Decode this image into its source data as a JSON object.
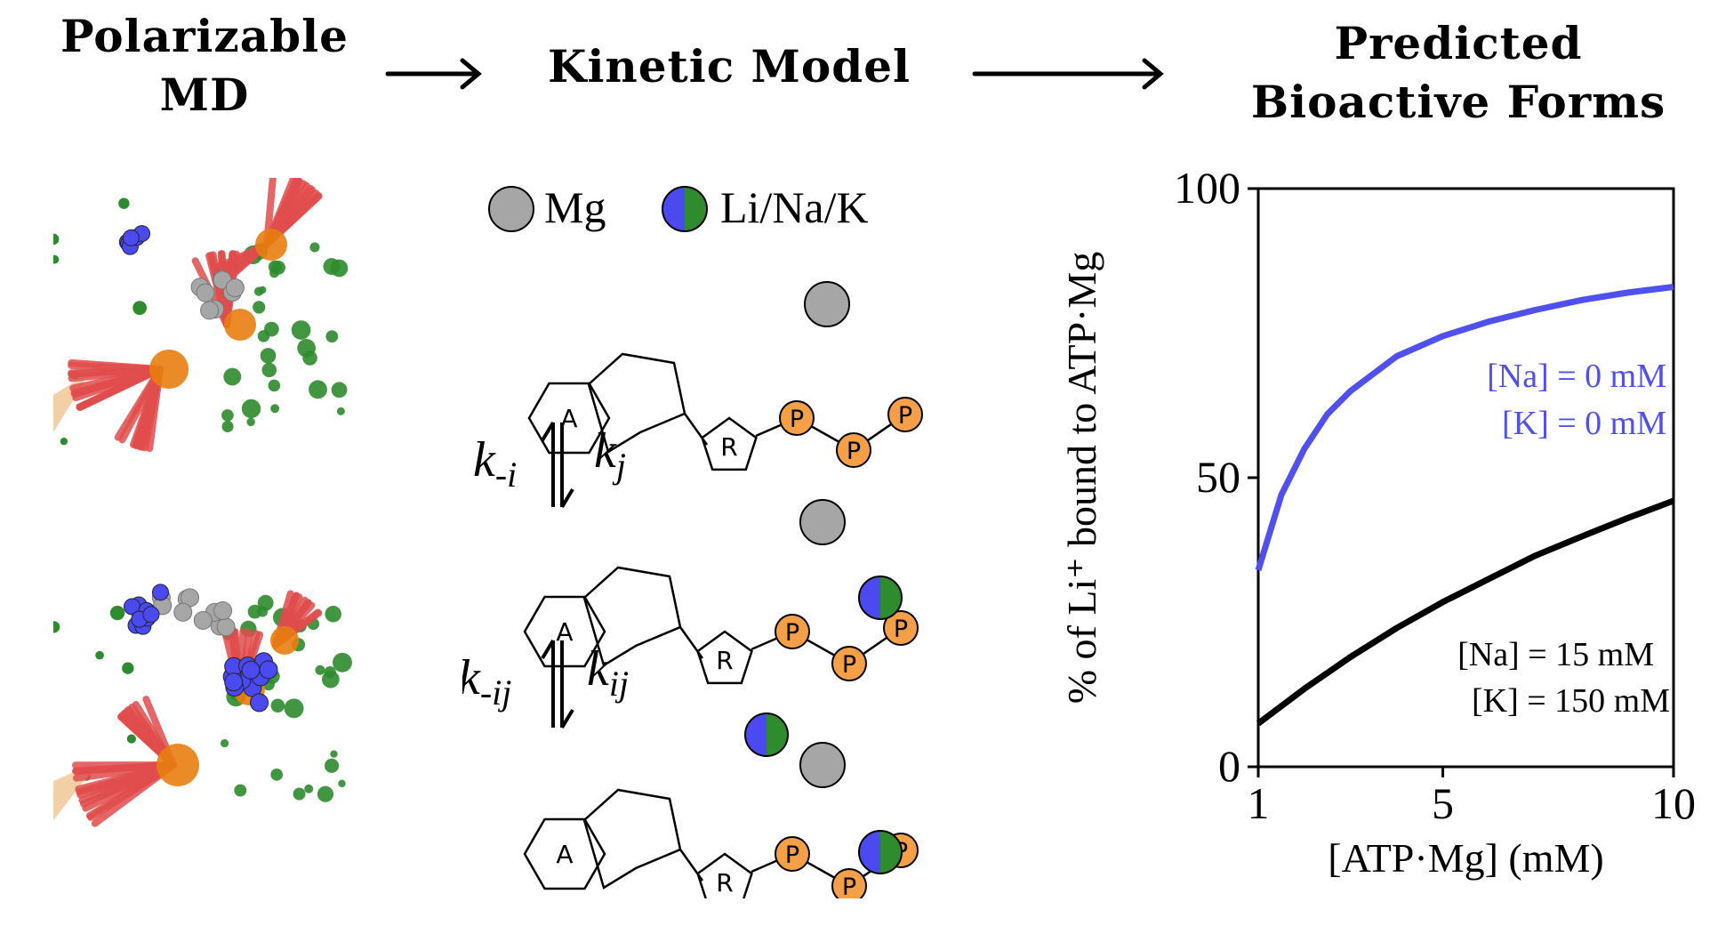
{
  "titles": {
    "left": [
      "Polarizable",
      "MD"
    ],
    "middle": "Kinetic Model",
    "right": [
      "Predicted",
      "Bioactive Forms"
    ]
  },
  "legend": {
    "mg": "Mg",
    "ions": "Li/Na/K"
  },
  "molecule_labels": {
    "adenine": "A",
    "ribose": "R",
    "phosphate": "P"
  },
  "rates": {
    "k1_reverse": {
      "base": "k",
      "sub": "-i"
    },
    "k1_forward": {
      "base": "k",
      "sub": "j"
    },
    "k2_reverse": {
      "base": "k",
      "sub": "-ij"
    },
    "k2_forward": {
      "base": "k",
      "sub": "ij"
    }
  },
  "colors": {
    "mg": "#a6a6a6",
    "ion_blue": "#4a4af0",
    "ion_green": "#2e8b2e",
    "phosphate": "#f5a049",
    "series_blue": "#5050ee",
    "series_black": "#000000",
    "md_red": "#e14c4c",
    "md_orange": "#e87e10",
    "md_tan": "#f3cfa6"
  },
  "chart_data": {
    "type": "line",
    "xlabel": "[ATP·Mg] (mM)",
    "ylabel": "% of Li⁺ bound to ATP·Mg",
    "xlim": [
      1,
      10
    ],
    "ylim": [
      0,
      100
    ],
    "xticks": [
      "1",
      "5",
      "10"
    ],
    "yticks": [
      "0",
      "50",
      "100"
    ],
    "grid": false,
    "series": [
      {
        "annotation": [
          "[Na] = 0 mM",
          "[K] = 0 mM"
        ],
        "color": "#5050ee",
        "x": [
          1,
          1.5,
          2,
          2.5,
          3,
          4,
          5,
          6,
          7,
          8,
          9,
          10
        ],
        "y": [
          34,
          47,
          55,
          61,
          65,
          71,
          74.5,
          77,
          79,
          80.7,
          82,
          83
        ]
      },
      {
        "annotation": [
          "[Na] = 15 mM",
          "[K] = 150 mM"
        ],
        "color": "#000000",
        "x": [
          1,
          2,
          3,
          4,
          5,
          6,
          7,
          8,
          9,
          10
        ],
        "y": [
          7.5,
          13.5,
          19,
          24,
          28.5,
          32.5,
          36.5,
          39.8,
          43,
          46
        ]
      }
    ]
  }
}
